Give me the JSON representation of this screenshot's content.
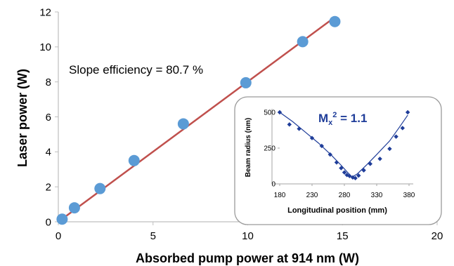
{
  "chart_data": [
    {
      "type": "scatter",
      "xlabel": "Absorbed pump power at 914 nm (W)",
      "ylabel": "Laser power (W)",
      "xlim": [
        0,
        20
      ],
      "ylim": [
        0,
        12
      ],
      "xticks": [
        0,
        5,
        10,
        15,
        20
      ],
      "yticks": [
        0,
        2,
        4,
        6,
        8,
        10,
        12
      ],
      "grid": false,
      "series": [
        {
          "points": [
            [
              0.2,
              0.15
            ],
            [
              0.85,
              0.8
            ],
            [
              2.2,
              1.9
            ],
            [
              4.0,
              3.5
            ],
            [
              6.6,
              5.6
            ],
            [
              9.9,
              7.95
            ],
            [
              12.9,
              10.3
            ],
            [
              14.6,
              11.45
            ]
          ]
        }
      ],
      "fit_line": {
        "x": [
          0,
          14.6
        ],
        "y": [
          0,
          11.7
        ]
      },
      "annotation": "Slope efficiency = 80.7 %",
      "colors": {
        "points": "#5b9bd5",
        "fit": "#c0504d"
      }
    },
    {
      "type": "scatter",
      "title_prefix": "M",
      "title_sub": "x",
      "title_sup": "2",
      "title_suffix": " =  1.1",
      "xlabel": "Longitudinal position (mm)",
      "ylabel": "Beam radius (nm)",
      "xlim": [
        180,
        380
      ],
      "ylim": [
        0,
        500
      ],
      "xticks": [
        180,
        230,
        280,
        330,
        380
      ],
      "yticks": [
        0,
        250,
        500
      ],
      "grid": false,
      "series": [
        {
          "points": [
            [
              180,
              500
            ],
            [
              195,
              415
            ],
            [
              210,
              385
            ],
            [
              230,
              320
            ],
            [
              245,
              265
            ],
            [
              258,
              205
            ],
            [
              268,
              150
            ],
            [
              275,
              110
            ],
            [
              280,
              80
            ],
            [
              284,
              62
            ],
            [
              288,
              55
            ],
            [
              293,
              45
            ],
            [
              297,
              40
            ],
            [
              302,
              58
            ],
            [
              310,
              95
            ],
            [
              320,
              140
            ],
            [
              335,
              175
            ],
            [
              350,
              245
            ],
            [
              360,
              330
            ],
            [
              370,
              390
            ],
            [
              378,
              500
            ]
          ]
        }
      ],
      "fit_curve": {
        "x": [
          180,
          200,
          220,
          240,
          260,
          275,
          285,
          292,
          300,
          315,
          330,
          350,
          365,
          378
        ],
        "y": [
          500,
          435,
          360,
          285,
          200,
          130,
          80,
          48,
          70,
          135,
          205,
          300,
          395,
          480
        ]
      },
      "colors": {
        "points": "#1f3d99",
        "fit": "#1f3d99",
        "title": "#1f3d99"
      }
    }
  ]
}
